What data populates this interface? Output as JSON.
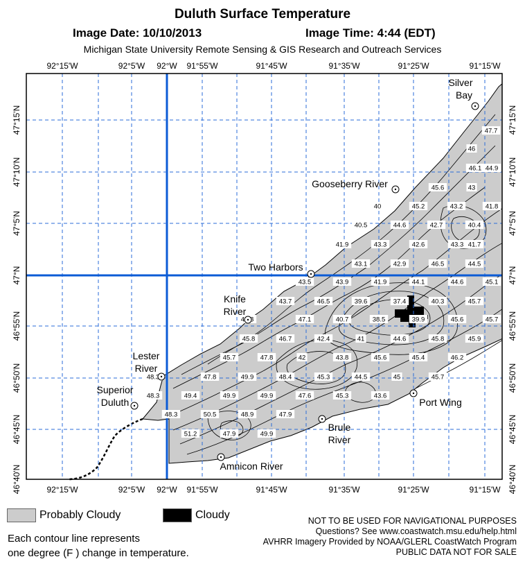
{
  "header": {
    "title": "Duluth Surface Temperature",
    "date": "Image Date: 10/10/2013",
    "time": "Image Time: 4:44 (EDT)",
    "credit": "Michigan State University Remote Sensing & GIS Research and Outreach Services"
  },
  "map": {
    "lon_labels": [
      "92°15'W",
      "92°5'W",
      "92°W",
      "91°55'W",
      "91°45'W",
      "91°35'W",
      "91°25'W",
      "91°15'W"
    ],
    "lat_labels": [
      "47°15'N",
      "47°10'N",
      "47°5'N",
      "47°N",
      "46°55'N",
      "46°50'N",
      "46°45'N",
      "46°40'N"
    ],
    "places": [
      {
        "name": "Silver Bay",
        "line1": "Silver",
        "line2": "Bay"
      },
      {
        "name": "Gooseberry River",
        "line1": "Gooseberry River"
      },
      {
        "name": "Two Harbors",
        "line1": "Two Harbors"
      },
      {
        "name": "Knife River",
        "line1": "Knife",
        "line2": "River"
      },
      {
        "name": "Lester River",
        "line1": "Lester",
        "line2": "River"
      },
      {
        "name": "Superior Duluth",
        "line1": "Superior",
        "line2": "Duluth"
      },
      {
        "name": "Brule River",
        "line1": "Brule",
        "line2": "River"
      },
      {
        "name": "Port Wing",
        "line1": "Port Wing"
      },
      {
        "name": "Amnicon River",
        "line1": "Amnicon River"
      }
    ],
    "temperatures": [
      "47.7",
      "46",
      "46.1",
      "44.9",
      "43",
      "45.6",
      "41.8",
      "45.2",
      "40",
      "43.2",
      "40.5",
      "44.6",
      "42.7",
      "40.4",
      "41.9",
      "43.3",
      "42.6",
      "43.3",
      "41.7",
      "43.1",
      "42.9",
      "46.5",
      "44.5",
      "43.5",
      "43.9",
      "41.9",
      "44.1",
      "44.6",
      "45.1",
      "43.7",
      "46.5",
      "39.6",
      "37.4",
      "40.3",
      "45.7",
      "47.1",
      "40.7",
      "38.5",
      "39.9",
      "45.6",
      "45.7",
      "45.8",
      "46.7",
      "42.4",
      "41",
      "44.6",
      "45.8",
      "45.9",
      "45.8",
      "45.7",
      "47.8",
      "42",
      "43.8",
      "45.6",
      "45.4",
      "46.2",
      "48.3",
      "47.8",
      "49.9",
      "48.4",
      "45.3",
      "44.5",
      "45",
      "45.7",
      "48.3",
      "49.4",
      "49.9",
      "49.9",
      "47.6",
      "45.3",
      "43.6",
      "48.3",
      "50.5",
      "48.9",
      "47.9",
      "51.2",
      "47.9",
      "49.9"
    ],
    "colors": {
      "cloud_probable": "#cccccc",
      "cloud": "#000000",
      "grid_major": "#0b5bd6",
      "grid_minor": "#2a6bd9"
    }
  },
  "legend": {
    "probably_cloudy": "Probably Cloudy",
    "cloudy": "Cloudy",
    "note_line1": "Each contour line represents",
    "note_line2": "one degree (F ) change in temperature."
  },
  "disclaimer": {
    "line1": "NOT TO BE USED FOR NAVIGATIONAL PURPOSES",
    "line2": "Questions?  See www.coastwatch.msu.edu/help.html",
    "line3": "AVHRR Imagery Provided by NOAA/GLERL CoastWatch Program",
    "line4": "PUBLIC DATA NOT FOR SALE"
  }
}
